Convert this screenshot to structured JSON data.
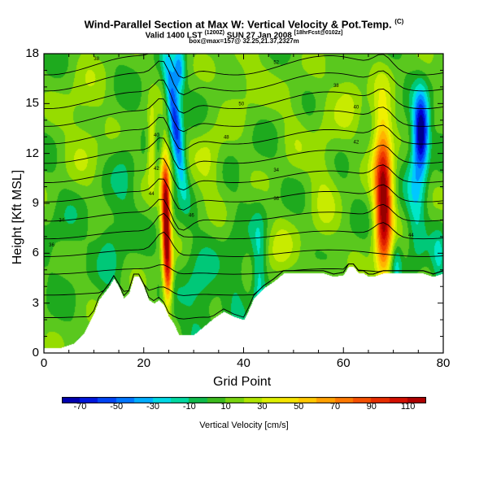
{
  "title": {
    "main": "Wind-Parallel Section at Max W: Vertical Velocity & Pot.Temp.",
    "main_sup": "(C)",
    "valid": "Valid 1400 LST",
    "valid_sup1": "(1200Z)",
    "date": "SUN 27 Jan 2008",
    "valid_sup2": "[18hrFcst@0102z]",
    "box": "box@max=157@ 32.25,21.37,2327m"
  },
  "chart_data": {
    "type": "heatmap",
    "xlabel": "Grid Point",
    "ylabel": "Height [Kft MSL]",
    "xlim": [
      0,
      80
    ],
    "ylim": [
      0,
      18
    ],
    "xticks": [
      "0",
      "20",
      "40",
      "60",
      "80"
    ],
    "xtick_values": [
      0,
      20,
      40,
      60,
      80
    ],
    "yticks": [
      "0",
      "3",
      "6",
      "9",
      "12",
      "15",
      "18"
    ],
    "ytick_values": [
      0,
      3,
      6,
      9,
      12,
      15,
      18
    ],
    "colorbar": {
      "title": "Vertical Velocity [cm/s]",
      "min": -80,
      "max": 120,
      "tick_labels": [
        "-70",
        "-50",
        "-30",
        "-10",
        "10",
        "30",
        "50",
        "70",
        "90",
        "110"
      ],
      "tick_values": [
        -70,
        -50,
        -30,
        -10,
        10,
        30,
        50,
        70,
        90,
        110
      ]
    },
    "background_value": 8,
    "terrain": {
      "x": [
        0,
        3,
        6,
        8,
        9,
        10,
        11,
        12,
        13,
        14,
        15,
        16,
        17,
        18,
        19,
        20,
        21,
        22,
        23,
        24,
        25,
        26,
        27,
        28,
        30,
        32,
        34,
        36,
        38,
        40,
        41,
        42,
        44,
        46,
        48,
        50,
        52,
        54,
        56,
        58,
        60,
        61,
        62,
        63,
        64,
        65,
        66,
        68,
        70,
        72,
        74,
        76,
        78,
        80
      ],
      "height": [
        0.3,
        0.3,
        0.6,
        1.2,
        1.8,
        2.4,
        3.2,
        3.6,
        4.0,
        4.5,
        4.0,
        3.3,
        3.6,
        4.6,
        4.6,
        4.0,
        3.2,
        3.0,
        3.2,
        2.9,
        2.2,
        1.8,
        1.1,
        1.1,
        1.1,
        1.6,
        2.1,
        2.5,
        2.2,
        2.0,
        2.6,
        3.3,
        3.9,
        4.3,
        4.8,
        4.8,
        4.8,
        4.8,
        4.8,
        4.6,
        4.7,
        5.2,
        5.2,
        4.8,
        4.8,
        4.6,
        4.6,
        4.8,
        4.8,
        4.8,
        4.8,
        4.8,
        4.6,
        4.8
      ]
    },
    "blobs": [
      {
        "x": 68.0,
        "y": 8.5,
        "sx": 1.2,
        "sy": 2.8,
        "w": 110,
        "rot": 0
      },
      {
        "x": 67.5,
        "y": 12.5,
        "sx": 1.5,
        "sy": 2.5,
        "w": 35,
        "rot": 0
      },
      {
        "x": 75.5,
        "y": 13.3,
        "sx": 1.0,
        "sy": 1.5,
        "w": -90,
        "rot": 0
      },
      {
        "x": 74.5,
        "y": 10.0,
        "sx": 1.3,
        "sy": 3.0,
        "w": -30,
        "rot": 0
      },
      {
        "x": 24.5,
        "y": 7.5,
        "sx": 0.6,
        "sy": 2.5,
        "w": 110,
        "rot": 0
      },
      {
        "x": 24.0,
        "y": 10.0,
        "sx": 0.6,
        "sy": 1.8,
        "w": 45,
        "rot": 0
      },
      {
        "x": 25.0,
        "y": 4.5,
        "sx": 0.6,
        "sy": 1.2,
        "w": 45,
        "rot": 0
      },
      {
        "x": 26.0,
        "y": 14.5,
        "sx": 0.9,
        "sy": 2.3,
        "w": -65,
        "rot": -0.3
      },
      {
        "x": 27.0,
        "y": 11.5,
        "sx": 0.8,
        "sy": 1.5,
        "w": -25,
        "rot": -0.3
      },
      {
        "x": 27.0,
        "y": 17.0,
        "sx": 0.8,
        "sy": 1.0,
        "w": -45,
        "rot": 0
      },
      {
        "x": 21.5,
        "y": 12.5,
        "sx": 0.6,
        "sy": 1.6,
        "w": 35,
        "rot": 0
      },
      {
        "x": 31.0,
        "y": 3.5,
        "sx": 2.5,
        "sy": 2.0,
        "w": -20,
        "rot": 0
      },
      {
        "x": 13.0,
        "y": 6.5,
        "sx": 1.5,
        "sy": 2.0,
        "w": -15,
        "rot": 0
      },
      {
        "x": 38.5,
        "y": 5.0,
        "sx": 1.5,
        "sy": 2.0,
        "w": -15,
        "rot": 0
      },
      {
        "x": 43.0,
        "y": 4.5,
        "sx": 1.0,
        "sy": 2.5,
        "w": -30,
        "rot": 0
      },
      {
        "x": 47.0,
        "y": 6.0,
        "sx": 2.0,
        "sy": 1.2,
        "w": 20,
        "rot": 0
      },
      {
        "x": 56.0,
        "y": 10.0,
        "sx": 2.0,
        "sy": 3.5,
        "w": 15,
        "rot": 0
      },
      {
        "x": 8.0,
        "y": 14.0,
        "sx": 3.0,
        "sy": 2.5,
        "w": 15,
        "rot": 0
      },
      {
        "x": 33.0,
        "y": 11.5,
        "sx": 2.0,
        "sy": 1.5,
        "w": 20,
        "rot": 0
      },
      {
        "x": 40.0,
        "y": 16.5,
        "sx": 3.0,
        "sy": 1.5,
        "w": 15,
        "rot": 0
      },
      {
        "x": 16.0,
        "y": 10.0,
        "sx": 1.5,
        "sy": 3.0,
        "w": -10,
        "rot": 0
      },
      {
        "x": 4.0,
        "y": 7.0,
        "sx": 2.5,
        "sy": 1.5,
        "w": -10,
        "rot": 0
      },
      {
        "x": 61.0,
        "y": 15.5,
        "sx": 2.0,
        "sy": 1.5,
        "w": 18,
        "rot": 0
      },
      {
        "x": 70.5,
        "y": 5.5,
        "sx": 0.8,
        "sy": 1.0,
        "w": -25,
        "rot": 0
      },
      {
        "x": 79.0,
        "y": 5.5,
        "sx": 1.0,
        "sy": 1.5,
        "w": -20,
        "rot": 0
      },
      {
        "x": 50.0,
        "y": 14.0,
        "sx": 2.0,
        "sy": 2.0,
        "w": 10,
        "rot": 0
      }
    ],
    "contour_labels": [
      "34",
      "36",
      "38",
      "40",
      "42",
      "44",
      "46",
      "48",
      "50",
      "52"
    ]
  }
}
